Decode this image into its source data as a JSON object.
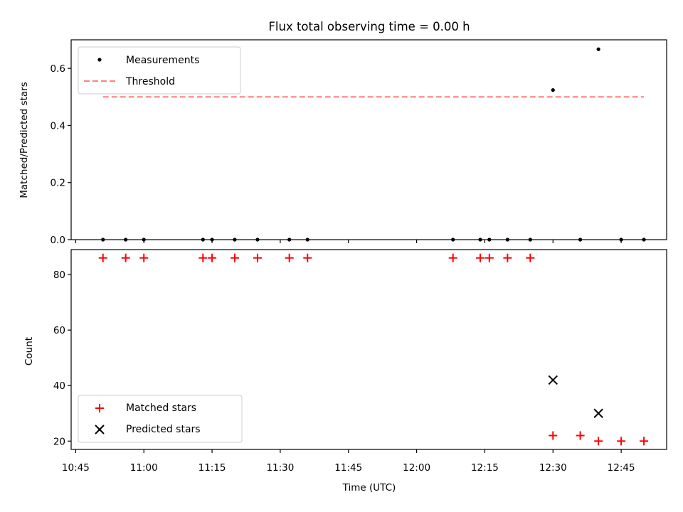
{
  "figure": {
    "title": "Flux total observing time = 0.00 h"
  },
  "chart_data": [
    {
      "type": "scatter",
      "ylabel": "Matched/Predicted stars",
      "xlabel": "",
      "ylim": [
        0,
        0.7
      ],
      "xlim": [
        "10:44",
        "12:55"
      ],
      "yticks": [
        0.0,
        0.2,
        0.4,
        0.6
      ],
      "ytick_labels": [
        "0.0",
        "0.2",
        "0.4",
        "0.6"
      ],
      "grid": false,
      "legend_position": "upper-left",
      "series": [
        {
          "name": "Measurements",
          "kind": "scatter",
          "color": "#000000",
          "marker": "dot",
          "x": [
            "10:51",
            "10:56",
            "11:00",
            "11:13",
            "11:15",
            "11:20",
            "11:25",
            "11:32",
            "11:36",
            "12:08",
            "12:14",
            "12:16",
            "12:20",
            "12:25",
            "12:30",
            "12:36",
            "12:40",
            "12:45",
            "12:50"
          ],
          "y": [
            0,
            0,
            0,
            0,
            0,
            0,
            0,
            0,
            0,
            0,
            0,
            0,
            0,
            0,
            0.524,
            0,
            0.667,
            0,
            0
          ]
        },
        {
          "name": "Threshold",
          "kind": "line",
          "color": "#ff7f7f",
          "style": "dashed",
          "x": [
            "10:51",
            "12:50"
          ],
          "y": [
            0.5,
            0.5
          ]
        }
      ]
    },
    {
      "type": "scatter",
      "ylabel": "Count",
      "xlabel": "Time (UTC)",
      "ylim": [
        17,
        89
      ],
      "xlim": [
        "10:44",
        "12:55"
      ],
      "yticks": [
        20,
        40,
        60,
        80
      ],
      "ytick_labels": [
        "20",
        "40",
        "60",
        "80"
      ],
      "xticks": [
        "10:45",
        "11:00",
        "11:15",
        "11:30",
        "11:45",
        "12:00",
        "12:15",
        "12:30",
        "12:45"
      ],
      "xtick_labels": [
        "10:45",
        "11:00",
        "11:15",
        "11:30",
        "11:45",
        "12:00",
        "12:15",
        "12:30",
        "12:45"
      ],
      "grid": false,
      "legend_position": "lower-left",
      "series": [
        {
          "name": "Matched stars",
          "kind": "scatter",
          "color": "#ff0000",
          "marker": "plus",
          "x": [
            "10:51",
            "10:56",
            "11:00",
            "11:13",
            "11:15",
            "11:20",
            "11:25",
            "11:32",
            "11:36",
            "12:08",
            "12:14",
            "12:16",
            "12:20",
            "12:25",
            "12:30",
            "12:36",
            "12:40",
            "12:45",
            "12:50"
          ],
          "y": [
            86,
            86,
            86,
            86,
            86,
            86,
            86,
            86,
            86,
            86,
            86,
            86,
            86,
            86,
            22,
            22,
            20,
            20,
            20
          ]
        },
        {
          "name": "Predicted stars",
          "kind": "scatter",
          "color": "#000000",
          "marker": "x",
          "x": [
            "12:30",
            "12:40"
          ],
          "y": [
            42,
            30
          ]
        }
      ]
    }
  ]
}
